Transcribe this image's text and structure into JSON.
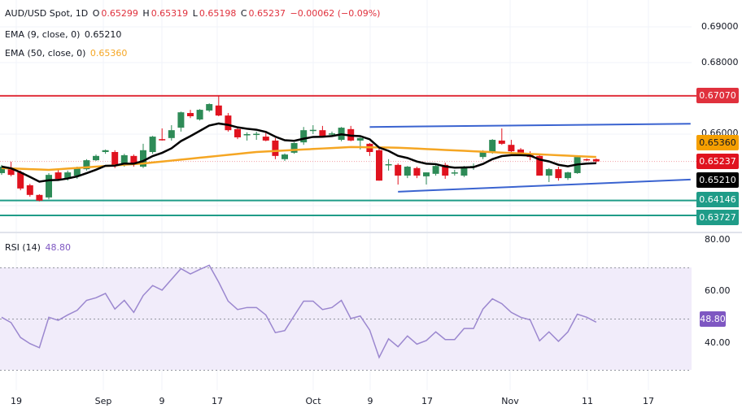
{
  "header": {
    "symbol": "AUD/USD Spot, 1D",
    "o_label": "O",
    "o": "0.65299",
    "h_label": "H",
    "h": "0.65319",
    "l_label": "L",
    "l": "0.65198",
    "c_label": "C",
    "c": "0.65237",
    "change": "−0.00062 (−0.09%)",
    "ema9_label": "EMA (9, close, 0)",
    "ema9_value": "0.65210",
    "ema50_label": "EMA (50, close, 0)",
    "ema50_value": "0.65360"
  },
  "price_axis": {
    "ticks": [
      "0.69000",
      "0.68000",
      "0.66000"
    ],
    "tags": {
      "resistance": "0.67070",
      "ema50": "0.65360",
      "last": "0.65237",
      "ema9": "0.65210",
      "support1": "0.64146",
      "support2": "0.63727"
    }
  },
  "rsi": {
    "label": "RSI (14)",
    "value": "48.80",
    "ticks": [
      "80.00",
      "60.00",
      "40.00"
    ]
  },
  "x_axis": {
    "labels": [
      "19",
      "Sep",
      "9",
      "17",
      "Oct",
      "9",
      "17",
      "Nov",
      "11",
      "17"
    ]
  },
  "colors": {
    "up": "#2e8b57",
    "down": "#e0131f",
    "ema9": "#000000",
    "ema50": "#f5a623",
    "resistance": "#e0313d",
    "support": "#1f9c88",
    "channel": "#3a63d0",
    "rsi": "#9b87cf"
  },
  "chart_data": [
    {
      "type": "candlestick",
      "title": "AUD/USD Spot, 1D",
      "ylim": [
        0.6345,
        0.6925
      ],
      "grid": true,
      "ohlc": [
        [
          0.6491,
          0.6514,
          0.6486,
          0.6509
        ],
        [
          0.6505,
          0.6523,
          0.6482,
          0.6486
        ],
        [
          0.6493,
          0.6498,
          0.6443,
          0.6448
        ],
        [
          0.6457,
          0.6461,
          0.6425,
          0.643
        ],
        [
          0.643,
          0.6432,
          0.6412,
          0.6414
        ],
        [
          0.6423,
          0.6491,
          0.6418,
          0.6486
        ],
        [
          0.6493,
          0.65,
          0.647,
          0.6475
        ],
        [
          0.6475,
          0.6498,
          0.647,
          0.6493
        ],
        [
          0.6484,
          0.6509,
          0.6475,
          0.6505
        ],
        [
          0.6502,
          0.653,
          0.6498,
          0.6527
        ],
        [
          0.6527,
          0.6543,
          0.6525,
          0.6539
        ],
        [
          0.655,
          0.6557,
          0.6545,
          0.6555
        ],
        [
          0.655,
          0.6555,
          0.6505,
          0.6514
        ],
        [
          0.6516,
          0.6545,
          0.6509,
          0.6541
        ],
        [
          0.6539,
          0.6543,
          0.6509,
          0.6516
        ],
        [
          0.6509,
          0.6573,
          0.6505,
          0.6555
        ],
        [
          0.655,
          0.6595,
          0.6545,
          0.6593
        ],
        [
          0.6586,
          0.6616,
          0.6582,
          0.6584
        ],
        [
          0.6589,
          0.6625,
          0.6582,
          0.6611
        ],
        [
          0.6618,
          0.6663,
          0.6607,
          0.6661
        ],
        [
          0.6659,
          0.6668,
          0.6645,
          0.665
        ],
        [
          0.6641,
          0.667,
          0.6638,
          0.6668
        ],
        [
          0.6666,
          0.6686,
          0.6662,
          0.6684
        ],
        [
          0.668,
          0.6707,
          0.665,
          0.6652
        ],
        [
          0.6652,
          0.6659,
          0.6607,
          0.6611
        ],
        [
          0.6614,
          0.6618,
          0.6586,
          0.6591
        ],
        [
          0.66,
          0.6605,
          0.6582,
          0.66
        ],
        [
          0.66,
          0.6607,
          0.6584,
          0.6601
        ],
        [
          0.6593,
          0.6609,
          0.658,
          0.6582
        ],
        [
          0.6582,
          0.6589,
          0.653,
          0.6539
        ],
        [
          0.653,
          0.6546,
          0.6525,
          0.6543
        ],
        [
          0.6548,
          0.6577,
          0.6545,
          0.6575
        ],
        [
          0.6577,
          0.662,
          0.657,
          0.6611
        ],
        [
          0.6611,
          0.6625,
          0.66,
          0.6612
        ],
        [
          0.6611,
          0.6623,
          0.6595,
          0.6595
        ],
        [
          0.66,
          0.6607,
          0.6593,
          0.6602
        ],
        [
          0.6584,
          0.662,
          0.658,
          0.6618
        ],
        [
          0.6614,
          0.6623,
          0.658,
          0.6582
        ],
        [
          0.6582,
          0.6591,
          0.6557,
          0.6589
        ],
        [
          0.6573,
          0.6575,
          0.6539,
          0.655
        ],
        [
          0.6555,
          0.6559,
          0.647,
          0.647
        ],
        [
          0.6514,
          0.653,
          0.6498,
          0.6516
        ],
        [
          0.6514,
          0.6518,
          0.6459,
          0.6484
        ],
        [
          0.6484,
          0.6511,
          0.6477,
          0.6509
        ],
        [
          0.6505,
          0.6509,
          0.6477,
          0.6484
        ],
        [
          0.6482,
          0.6493,
          0.6459,
          0.6493
        ],
        [
          0.6489,
          0.6514,
          0.6484,
          0.6511
        ],
        [
          0.6514,
          0.652,
          0.6475,
          0.6484
        ],
        [
          0.6491,
          0.65,
          0.6484,
          0.6493
        ],
        [
          0.6484,
          0.6511,
          0.648,
          0.6509
        ],
        [
          0.6509,
          0.6518,
          0.65,
          0.6511
        ],
        [
          0.6536,
          0.6555,
          0.653,
          0.6552
        ],
        [
          0.655,
          0.6586,
          0.6545,
          0.6584
        ],
        [
          0.6582,
          0.6616,
          0.657,
          0.6573
        ],
        [
          0.657,
          0.6584,
          0.6548,
          0.6552
        ],
        [
          0.6557,
          0.6561,
          0.6541,
          0.6541
        ],
        [
          0.6545,
          0.6552,
          0.6527,
          0.6536
        ],
        [
          0.6539,
          0.6541,
          0.6484,
          0.6484
        ],
        [
          0.6484,
          0.6505,
          0.6466,
          0.6502
        ],
        [
          0.6502,
          0.6509,
          0.647,
          0.6477
        ],
        [
          0.6477,
          0.6495,
          0.6472,
          0.6493
        ],
        [
          0.6491,
          0.6541,
          0.6489,
          0.6536
        ],
        [
          0.65299,
          0.65319,
          0.6525,
          0.6527
        ],
        [
          0.653,
          0.65319,
          0.65198,
          0.65237
        ]
      ],
      "ema50": [
        [
          0,
          0.6505
        ],
        [
          5,
          0.65
        ],
        [
          15,
          0.6518
        ],
        [
          27,
          0.655
        ],
        [
          37,
          0.6564
        ],
        [
          42,
          0.6562
        ],
        [
          63,
          0.6536
        ]
      ],
      "horizontal_levels": {
        "resistance": 0.6707,
        "support": [
          0.64146,
          0.63727
        ],
        "last_price": 0.65237
      },
      "channel": {
        "upper": [
          [
            39,
            0.662
          ],
          [
            73,
            0.6629
          ]
        ],
        "lower": [
          [
            42,
            0.6439
          ],
          [
            73,
            0.6473
          ]
        ]
      }
    },
    {
      "type": "line",
      "title": "RSI (14)",
      "ylim": [
        25,
        82
      ],
      "bands": [
        30,
        50,
        70
      ],
      "values": [
        50.7,
        48.6,
        42.8,
        40.4,
        38.8,
        50.7,
        49.5,
        51.6,
        53.4,
        57.3,
        58.3,
        60.0,
        53.9,
        57.3,
        52.6,
        59.2,
        63.1,
        61.3,
        65.5,
        69.7,
        67.6,
        69.4,
        71.0,
        64.4,
        57.0,
        53.7,
        54.5,
        54.5,
        51.6,
        44.7,
        45.5,
        51.3,
        57.0,
        57.0,
        53.7,
        54.5,
        57.3,
        50.2,
        51.2,
        45.7,
        35.0,
        42.3,
        39.2,
        43.4,
        40.2,
        41.6,
        45.0,
        42.0,
        42.0,
        46.3,
        46.3,
        53.9,
        57.9,
        56.0,
        52.6,
        50.7,
        49.7,
        41.5,
        45.0,
        41.3,
        45.0,
        51.9,
        50.7,
        48.8
      ]
    }
  ]
}
